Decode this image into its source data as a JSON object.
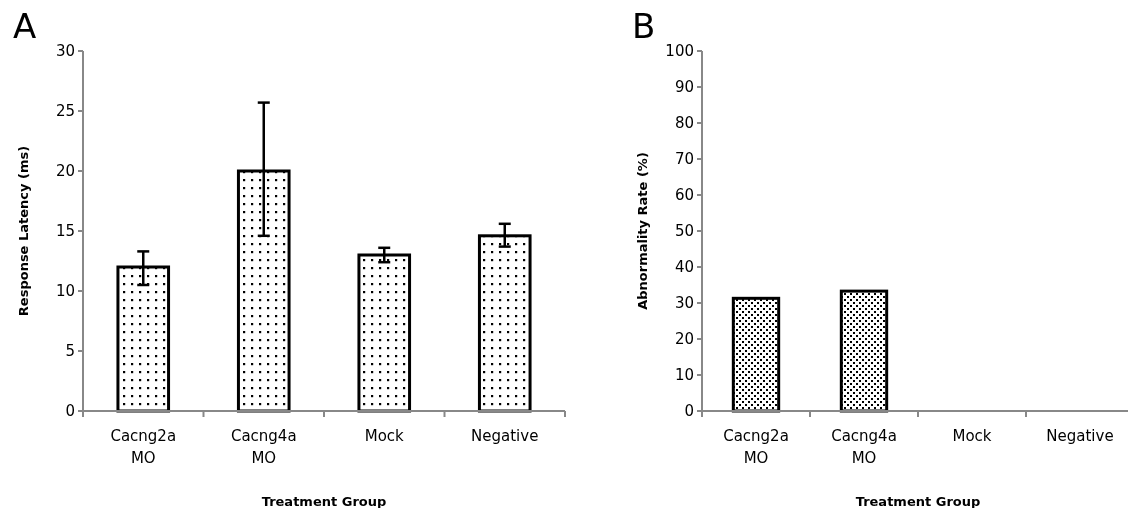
{
  "chart_data": [
    {
      "type": "bar",
      "title": "A",
      "xlabel": "Treatment Group",
      "ylabel": "Response Latency (ms)",
      "categories": [
        "Cacng2a MO",
        "Cacng4a MO",
        "Mock",
        "Negative"
      ],
      "values": [
        12,
        20,
        13,
        14.6
      ],
      "errors": [
        [
          10.5,
          13.3
        ],
        [
          14.6,
          25.7
        ],
        [
          12.4,
          13.6
        ],
        [
          13.7,
          15.6
        ]
      ],
      "color": "#000000",
      "ylim": [
        0,
        30
      ],
      "yticks": [
        0,
        5,
        10,
        15,
        20,
        25,
        30
      ]
    },
    {
      "type": "bar",
      "title": "B",
      "xlabel": "Treatment Group",
      "ylabel": "Abnormality Rate (%)",
      "categories": [
        "Cacng2a MO",
        "Cacng4a MO",
        "Mock",
        "Negative"
      ],
      "values": [
        31.3,
        33.3,
        0,
        0
      ],
      "color": "#000000",
      "ylim": [
        0,
        100
      ],
      "yticks": [
        0,
        10,
        20,
        30,
        40,
        50,
        60,
        70,
        80,
        90,
        100
      ]
    }
  ]
}
